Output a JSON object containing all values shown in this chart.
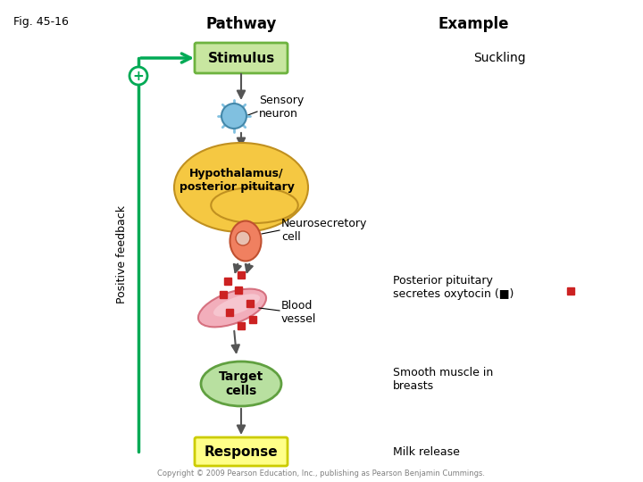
{
  "title_fig": "Fig. 45-16",
  "title_pathway": "Pathway",
  "title_example": "Example",
  "stimulus_label": "Stimulus",
  "suckling_label": "Suckling",
  "sensory_neuron_label": "Sensory\nneuron",
  "hypothalamus_label": "Hypothalamus/\nposterior pituitary",
  "neurosecretory_label": "Neurosecretory\ncell",
  "blood_vessel_label": "Blood\nvessel",
  "posterior_label": "Posterior pituitary\nsecretes oxytocin (■)",
  "target_cells_label": "Target\ncells",
  "smooth_muscle_label": "Smooth muscle in\nbreasts",
  "response_label": "Response",
  "milk_release_label": "Milk release",
  "positive_feedback_label": "Positive feedback",
  "copyright_label": "Copyright © 2009 Pearson Education, Inc., publishing as Pearson Benjamin Cummings.",
  "color_green_box": "#6db33f",
  "color_green_feedback": "#00aa55",
  "color_stimulus_box": "#c8e6a0",
  "color_stimulus_border": "#6db33f",
  "color_response_box": "#ffff88",
  "color_response_border": "#cccc00",
  "color_hypothalamus": "#f5c842",
  "color_neurosecretory": "#f08060",
  "color_blood_vessel": "#f0a0b0",
  "color_target_cells": "#b8e0a0",
  "color_sensory_neuron": "#80c0e0",
  "color_red_squares": "#cc2222",
  "color_arrow": "#555555",
  "color_feedback_arrow": "#00aa55"
}
